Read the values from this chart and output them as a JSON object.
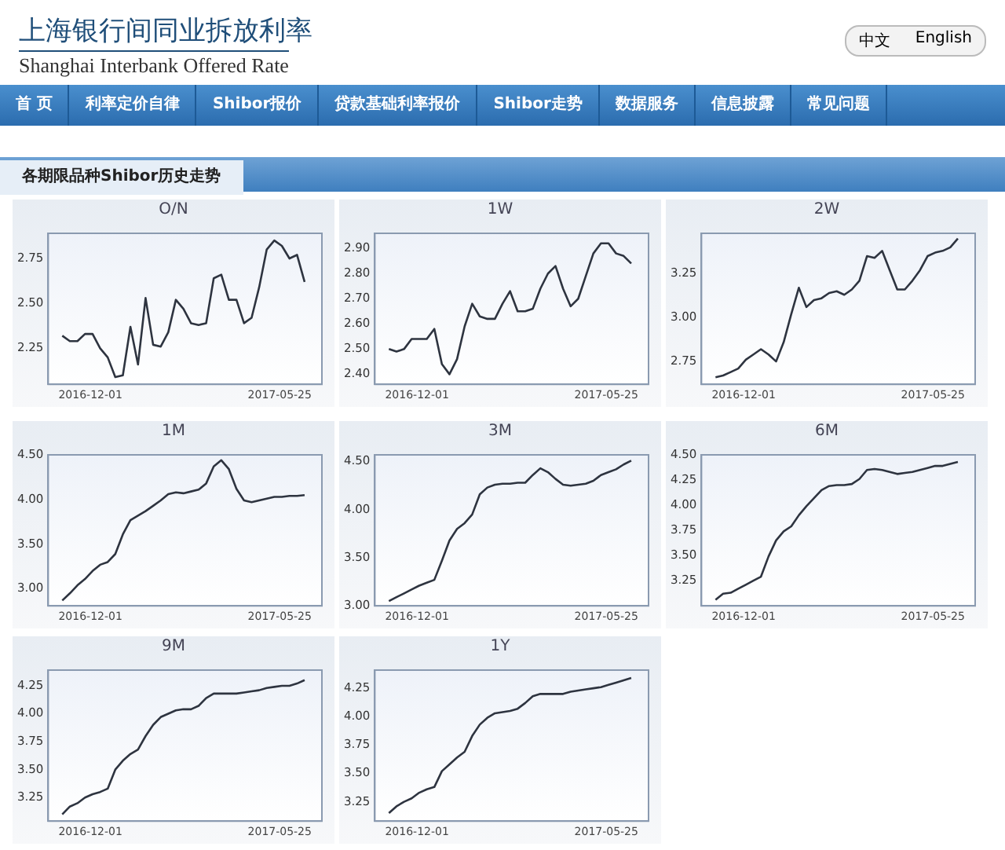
{
  "chart_data": [
    {
      "type": "other",
      "title": "上海银行间同业拆放利率",
      "subtitle": "Shanghai Interbank Offered Rate",
      "annotations": [
        "中文",
        "English",
        "首 页",
        "利率定价自律",
        "Shibor报价",
        "贷款基础利率报价",
        "Shibor走势",
        "数据服务",
        "信息披露",
        "常见问题",
        "各期限品种Shibor历史走势"
      ]
    },
    {
      "type": "line",
      "title": "O/N",
      "marker": "none",
      "xlim": [
        "2016-10-23",
        "2017-07-03"
      ],
      "xticks": [
        "2016-12-01",
        "2017-05-25"
      ],
      "ylim": [
        2.05,
        2.89
      ],
      "yticks": [
        {
          "value": 2.25,
          "label": "2.25"
        },
        {
          "value": 2.5,
          "label": "2.50"
        },
        {
          "value": 2.75,
          "label": "2.75"
        }
      ],
      "x": [
        "2016-11-05",
        "2016-11-12",
        "2016-11-19",
        "2016-11-26",
        "2016-12-03",
        "2016-12-10",
        "2016-12-17",
        "2016-12-24",
        "2016-12-31",
        "2017-01-07",
        "2017-01-14",
        "2017-01-21",
        "2017-01-28",
        "2017-02-04",
        "2017-02-11",
        "2017-02-18",
        "2017-02-25",
        "2017-03-04",
        "2017-03-11",
        "2017-03-18",
        "2017-03-25",
        "2017-04-01",
        "2017-04-08",
        "2017-04-15",
        "2017-04-22",
        "2017-04-29",
        "2017-05-06",
        "2017-05-13",
        "2017-05-20",
        "2017-05-27",
        "2017-06-03",
        "2017-06-10",
        "2017-06-17"
      ],
      "series": [
        {
          "color": "#2e3440",
          "values": [
            2.32,
            2.29,
            2.29,
            2.33,
            2.33,
            2.25,
            2.2,
            2.09,
            2.1,
            2.37,
            2.16,
            2.53,
            2.27,
            2.26,
            2.34,
            2.52,
            2.47,
            2.39,
            2.38,
            2.39,
            2.64,
            2.66,
            2.52,
            2.52,
            2.39,
            2.42,
            2.59,
            2.8,
            2.85,
            2.82,
            2.75,
            2.77,
            2.62
          ]
        }
      ]
    },
    {
      "type": "line",
      "title": "1W",
      "marker": "none",
      "xlim": [
        "2016-10-23",
        "2017-07-03"
      ],
      "xticks": [
        "2016-12-01",
        "2017-05-25"
      ],
      "ylim": [
        2.36,
        2.96
      ],
      "yticks": [
        {
          "value": 2.4,
          "label": "2.40"
        },
        {
          "value": 2.5,
          "label": "2.50"
        },
        {
          "value": 2.6,
          "label": "2.60"
        },
        {
          "value": 2.7,
          "label": "2.70"
        },
        {
          "value": 2.8,
          "label": "2.80"
        },
        {
          "value": 2.9,
          "label": "2.90"
        }
      ],
      "x": [
        "2016-11-05",
        "2016-11-12",
        "2016-11-19",
        "2016-11-26",
        "2016-12-03",
        "2016-12-10",
        "2016-12-17",
        "2016-12-24",
        "2016-12-31",
        "2017-01-07",
        "2017-01-14",
        "2017-01-21",
        "2017-01-28",
        "2017-02-04",
        "2017-02-11",
        "2017-02-18",
        "2017-02-25",
        "2017-03-04",
        "2017-03-11",
        "2017-03-18",
        "2017-03-25",
        "2017-04-01",
        "2017-04-08",
        "2017-04-15",
        "2017-04-22",
        "2017-04-29",
        "2017-05-06",
        "2017-05-13",
        "2017-05-20",
        "2017-05-27",
        "2017-06-03",
        "2017-06-10",
        "2017-06-17"
      ],
      "series": [
        {
          "color": "#2e3440",
          "values": [
            2.5,
            2.49,
            2.5,
            2.54,
            2.54,
            2.54,
            2.58,
            2.44,
            2.4,
            2.46,
            2.59,
            2.68,
            2.63,
            2.62,
            2.62,
            2.68,
            2.73,
            2.65,
            2.65,
            2.66,
            2.74,
            2.8,
            2.83,
            2.74,
            2.67,
            2.7,
            2.79,
            2.88,
            2.92,
            2.92,
            2.88,
            2.87,
            2.84
          ]
        }
      ]
    },
    {
      "type": "line",
      "title": "2W",
      "marker": "none",
      "xlim": [
        "2016-10-23",
        "2017-07-03"
      ],
      "xticks": [
        "2016-12-01",
        "2017-05-25"
      ],
      "ylim": [
        2.62,
        3.48
      ],
      "yticks": [
        {
          "value": 2.75,
          "label": "2.75"
        },
        {
          "value": 3,
          "label": "3.00"
        },
        {
          "value": 3.25,
          "label": "3.25"
        }
      ],
      "x": [
        "2016-11-05",
        "2016-11-12",
        "2016-11-19",
        "2016-11-26",
        "2016-12-03",
        "2016-12-10",
        "2016-12-17",
        "2016-12-24",
        "2016-12-31",
        "2017-01-07",
        "2017-01-14",
        "2017-01-21",
        "2017-01-28",
        "2017-02-04",
        "2017-02-11",
        "2017-02-18",
        "2017-02-25",
        "2017-03-04",
        "2017-03-11",
        "2017-03-18",
        "2017-03-25",
        "2017-04-01",
        "2017-04-08",
        "2017-04-15",
        "2017-04-22",
        "2017-04-29",
        "2017-05-06",
        "2017-05-13",
        "2017-05-20",
        "2017-05-27",
        "2017-06-03",
        "2017-06-10",
        "2017-06-17"
      ],
      "series": [
        {
          "color": "#2e3440",
          "values": [
            2.66,
            2.67,
            2.69,
            2.71,
            2.76,
            2.79,
            2.82,
            2.79,
            2.75,
            2.86,
            3.02,
            3.17,
            3.06,
            3.1,
            3.11,
            3.14,
            3.15,
            3.13,
            3.16,
            3.21,
            3.35,
            3.34,
            3.38,
            3.27,
            3.16,
            3.16,
            3.21,
            3.27,
            3.35,
            3.37,
            3.38,
            3.4,
            3.45
          ]
        }
      ]
    },
    {
      "type": "line",
      "title": "1M",
      "marker": "none",
      "xlim": [
        "2016-10-23",
        "2017-07-03"
      ],
      "xticks": [
        "2016-12-01",
        "2017-05-25"
      ],
      "ylim": [
        2.81,
        4.5
      ],
      "yticks": [
        {
          "value": 3,
          "label": "3.00"
        },
        {
          "value": 3.5,
          "label": "3.50"
        },
        {
          "value": 4,
          "label": "4.00"
        },
        {
          "value": 4.5,
          "label": "4.50"
        }
      ],
      "x": [
        "2016-11-05",
        "2016-11-12",
        "2016-11-19",
        "2016-11-26",
        "2016-12-03",
        "2016-12-10",
        "2016-12-17",
        "2016-12-24",
        "2016-12-31",
        "2017-01-07",
        "2017-01-14",
        "2017-01-21",
        "2017-01-28",
        "2017-02-04",
        "2017-02-11",
        "2017-02-18",
        "2017-02-25",
        "2017-03-04",
        "2017-03-11",
        "2017-03-18",
        "2017-03-25",
        "2017-04-01",
        "2017-04-08",
        "2017-04-15",
        "2017-04-22",
        "2017-04-29",
        "2017-05-06",
        "2017-05-13",
        "2017-05-20",
        "2017-05-27",
        "2017-06-03",
        "2017-06-10",
        "2017-06-17"
      ],
      "series": [
        {
          "color": "#2e3440",
          "values": [
            2.87,
            2.95,
            3.04,
            3.11,
            3.2,
            3.27,
            3.3,
            3.39,
            3.61,
            3.77,
            3.82,
            3.87,
            3.93,
            3.99,
            4.06,
            4.08,
            4.07,
            4.09,
            4.11,
            4.18,
            4.37,
            4.44,
            4.34,
            4.12,
            3.99,
            3.97,
            3.99,
            4.01,
            4.03,
            4.03,
            4.04,
            4.04,
            4.05
          ]
        }
      ]
    },
    {
      "type": "line",
      "title": "3M",
      "marker": "none",
      "xlim": [
        "2016-10-23",
        "2017-07-03"
      ],
      "xticks": [
        "2016-12-01",
        "2017-05-25"
      ],
      "ylim": [
        3.0,
        4.57
      ],
      "yticks": [
        {
          "value": 3,
          "label": "3.00"
        },
        {
          "value": 3.5,
          "label": "3.50"
        },
        {
          "value": 4,
          "label": "4.00"
        },
        {
          "value": 4.5,
          "label": "4.50"
        }
      ],
      "x": [
        "2016-11-05",
        "2016-11-12",
        "2016-11-19",
        "2016-11-26",
        "2016-12-03",
        "2016-12-10",
        "2016-12-17",
        "2016-12-24",
        "2016-12-31",
        "2017-01-07",
        "2017-01-14",
        "2017-01-21",
        "2017-01-28",
        "2017-02-04",
        "2017-02-11",
        "2017-02-18",
        "2017-02-25",
        "2017-03-04",
        "2017-03-11",
        "2017-03-18",
        "2017-03-25",
        "2017-04-01",
        "2017-04-08",
        "2017-04-15",
        "2017-04-22",
        "2017-04-29",
        "2017-05-06",
        "2017-05-13",
        "2017-05-20",
        "2017-05-27",
        "2017-06-03",
        "2017-06-10",
        "2017-06-17"
      ],
      "series": [
        {
          "color": "#2e3440",
          "values": [
            3.05,
            3.09,
            3.13,
            3.17,
            3.21,
            3.24,
            3.27,
            3.47,
            3.68,
            3.8,
            3.86,
            3.95,
            4.16,
            4.23,
            4.26,
            4.27,
            4.27,
            4.28,
            4.28,
            4.36,
            4.43,
            4.39,
            4.32,
            4.26,
            4.25,
            4.26,
            4.27,
            4.3,
            4.36,
            4.39,
            4.42,
            4.47,
            4.51
          ]
        }
      ]
    },
    {
      "type": "line",
      "title": "6M",
      "marker": "none",
      "xlim": [
        "2016-10-23",
        "2017-07-03"
      ],
      "xticks": [
        "2016-12-01",
        "2017-05-25"
      ],
      "ylim": [
        3.0,
        4.5
      ],
      "yticks": [
        {
          "value": 3.25,
          "label": "3.25"
        },
        {
          "value": 3.5,
          "label": "3.50"
        },
        {
          "value": 3.75,
          "label": "3.75"
        },
        {
          "value": 4,
          "label": "4.00"
        },
        {
          "value": 4.25,
          "label": "4.25"
        },
        {
          "value": 4.5,
          "label": "4.50"
        }
      ],
      "x": [
        "2016-11-05",
        "2016-11-12",
        "2016-11-19",
        "2016-11-26",
        "2016-12-03",
        "2016-12-10",
        "2016-12-17",
        "2016-12-24",
        "2016-12-31",
        "2017-01-07",
        "2017-01-14",
        "2017-01-21",
        "2017-01-28",
        "2017-02-04",
        "2017-02-11",
        "2017-02-18",
        "2017-02-25",
        "2017-03-04",
        "2017-03-11",
        "2017-03-18",
        "2017-03-25",
        "2017-04-01",
        "2017-04-08",
        "2017-04-15",
        "2017-04-22",
        "2017-04-29",
        "2017-05-06",
        "2017-05-13",
        "2017-05-20",
        "2017-05-27",
        "2017-06-03",
        "2017-06-10",
        "2017-06-17"
      ],
      "series": [
        {
          "color": "#2e3440",
          "values": [
            3.06,
            3.12,
            3.13,
            3.17,
            3.21,
            3.25,
            3.29,
            3.49,
            3.65,
            3.74,
            3.79,
            3.9,
            3.99,
            4.07,
            4.15,
            4.19,
            4.2,
            4.2,
            4.21,
            4.26,
            4.35,
            4.36,
            4.35,
            4.33,
            4.31,
            4.32,
            4.33,
            4.35,
            4.37,
            4.39,
            4.39,
            4.41,
            4.43
          ]
        }
      ]
    },
    {
      "type": "line",
      "title": "9M",
      "marker": "none",
      "xlim": [
        "2016-10-23",
        "2017-07-03"
      ],
      "xticks": [
        "2016-12-01",
        "2017-05-25"
      ],
      "ylim": [
        3.04,
        4.39
      ],
      "yticks": [
        {
          "value": 3.25,
          "label": "3.25"
        },
        {
          "value": 3.5,
          "label": "3.50"
        },
        {
          "value": 3.75,
          "label": "3.75"
        },
        {
          "value": 4,
          "label": "4.00"
        },
        {
          "value": 4.25,
          "label": "4.25"
        }
      ],
      "x": [
        "2016-11-05",
        "2016-11-12",
        "2016-11-19",
        "2016-11-26",
        "2016-12-03",
        "2016-12-10",
        "2016-12-17",
        "2016-12-24",
        "2016-12-31",
        "2017-01-07",
        "2017-01-14",
        "2017-01-21",
        "2017-01-28",
        "2017-02-04",
        "2017-02-11",
        "2017-02-18",
        "2017-02-25",
        "2017-03-04",
        "2017-03-11",
        "2017-03-18",
        "2017-03-25",
        "2017-04-01",
        "2017-04-08",
        "2017-04-15",
        "2017-04-22",
        "2017-04-29",
        "2017-05-06",
        "2017-05-13",
        "2017-05-20",
        "2017-05-27",
        "2017-06-03",
        "2017-06-10",
        "2017-06-17"
      ],
      "series": [
        {
          "color": "#2e3440",
          "values": [
            3.1,
            3.17,
            3.2,
            3.25,
            3.28,
            3.3,
            3.33,
            3.5,
            3.58,
            3.64,
            3.68,
            3.8,
            3.9,
            3.97,
            4.0,
            4.03,
            4.04,
            4.04,
            4.07,
            4.14,
            4.18,
            4.18,
            4.18,
            4.18,
            4.19,
            4.2,
            4.21,
            4.23,
            4.24,
            4.25,
            4.25,
            4.27,
            4.3
          ]
        }
      ]
    },
    {
      "type": "line",
      "title": "1Y",
      "marker": "none",
      "xlim": [
        "2016-10-23",
        "2017-07-03"
      ],
      "xticks": [
        "2016-12-01",
        "2017-05-25"
      ],
      "ylim": [
        3.08,
        4.41
      ],
      "yticks": [
        {
          "value": 3.25,
          "label": "3.25"
        },
        {
          "value": 3.5,
          "label": "3.50"
        },
        {
          "value": 3.75,
          "label": "3.75"
        },
        {
          "value": 4,
          "label": "4.00"
        },
        {
          "value": 4.25,
          "label": "4.25"
        }
      ],
      "x": [
        "2016-11-05",
        "2016-11-12",
        "2016-11-19",
        "2016-11-26",
        "2016-12-03",
        "2016-12-10",
        "2016-12-17",
        "2016-12-24",
        "2016-12-31",
        "2017-01-07",
        "2017-01-14",
        "2017-01-21",
        "2017-01-28",
        "2017-02-04",
        "2017-02-11",
        "2017-02-18",
        "2017-02-25",
        "2017-03-04",
        "2017-03-11",
        "2017-03-18",
        "2017-03-25",
        "2017-04-01",
        "2017-04-08",
        "2017-04-15",
        "2017-04-22",
        "2017-04-29",
        "2017-05-06",
        "2017-05-13",
        "2017-05-20",
        "2017-05-27",
        "2017-06-03",
        "2017-06-10",
        "2017-06-17"
      ],
      "series": [
        {
          "color": "#2e3440",
          "values": [
            3.15,
            3.21,
            3.25,
            3.28,
            3.33,
            3.36,
            3.38,
            3.52,
            3.58,
            3.64,
            3.69,
            3.83,
            3.93,
            3.99,
            4.03,
            4.04,
            4.05,
            4.07,
            4.12,
            4.18,
            4.2,
            4.2,
            4.2,
            4.2,
            4.22,
            4.23,
            4.24,
            4.25,
            4.26,
            4.28,
            4.3,
            4.32,
            4.34
          ]
        }
      ]
    }
  ]
}
